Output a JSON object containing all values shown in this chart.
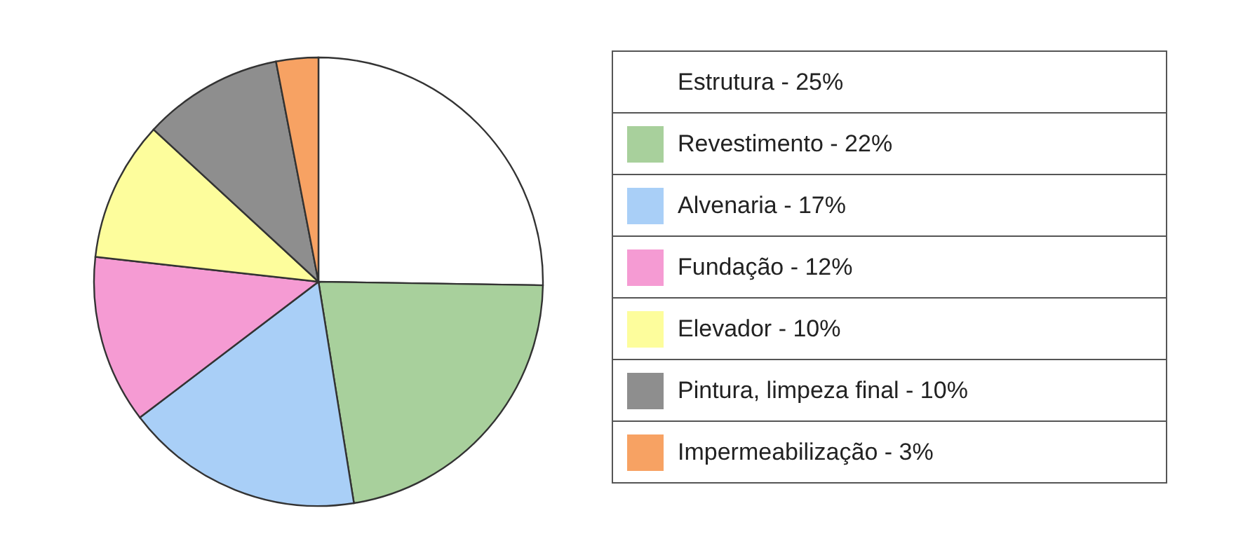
{
  "chart_data": {
    "type": "pie",
    "categories": [
      "Estrutura - 25%",
      "Revestimento - 22%",
      "Alvenaria - 17%",
      "Fundação - 12%",
      "Elevador - 10%",
      "Pintura, limpeza final - 10%",
      "Impermeabilização - 3%"
    ],
    "values": [
      25,
      22,
      17,
      12,
      10,
      10,
      3
    ],
    "colors": [
      "#ffffff",
      "#a8d09c",
      "#a9cff7",
      "#f59bd3",
      "#fdfd9c",
      "#8e8e8e",
      "#f7a263"
    ],
    "legend": "right"
  }
}
